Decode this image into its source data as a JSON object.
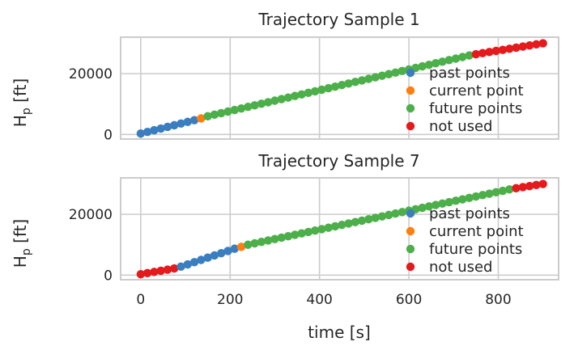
{
  "chart_data": [
    {
      "type": "scatter",
      "title": "Trajectory Sample 1",
      "xlabel": "",
      "ylabel": "H_p [ft]",
      "xlim": [
        -45,
        935
      ],
      "ylim": [
        -1500,
        32000
      ],
      "xticks": [
        0,
        200,
        400,
        600,
        800
      ],
      "yticks": [
        0,
        20000
      ],
      "xticklabels_visible": false,
      "grid": true,
      "legend_position": "lower-right",
      "sample_interval_s": 15,
      "series": [
        {
          "name": "past points",
          "color": "#3a7ebf",
          "x_start": 0,
          "x_end": 120,
          "y_start": 300,
          "y_end": 4700
        },
        {
          "name": "current point",
          "color": "#ff7f0e",
          "x_start": 135,
          "x_end": 135,
          "y_start": 5300,
          "y_end": 5300
        },
        {
          "name": "future points",
          "color": "#4daf4a",
          "x_start": 150,
          "x_end": 735,
          "y_start": 6000,
          "y_end": 26000
        },
        {
          "name": "not used",
          "color": "#e41a1c",
          "x_start": 750,
          "x_end": 900,
          "y_start": 26400,
          "y_end": 30000
        }
      ]
    },
    {
      "type": "scatter",
      "title": "Trajectory Sample 7",
      "xlabel": "time [s]",
      "ylabel": "H_p [ft]",
      "xlim": [
        -45,
        935
      ],
      "ylim": [
        -1500,
        32000
      ],
      "xticks": [
        0,
        200,
        400,
        600,
        800
      ],
      "yticks": [
        0,
        20000
      ],
      "xticklabels_visible": true,
      "grid": true,
      "legend_position": "lower-right",
      "sample_interval_s": 15,
      "series": [
        {
          "name": "not used",
          "color": "#e41a1c",
          "x_start": 0,
          "x_end": 75,
          "y_start": 300,
          "y_end": 2200
        },
        {
          "name": "past points",
          "color": "#3a7ebf",
          "x_start": 90,
          "x_end": 210,
          "y_start": 2800,
          "y_end": 8700
        },
        {
          "name": "current point",
          "color": "#ff7f0e",
          "x_start": 225,
          "x_end": 225,
          "y_start": 9300,
          "y_end": 9300
        },
        {
          "name": "future points",
          "color": "#4daf4a",
          "x_start": 240,
          "x_end": 825,
          "y_start": 10000,
          "y_end": 28200
        },
        {
          "name": "not used",
          "color": "#e41a1c",
          "x_start": 840,
          "x_end": 900,
          "y_start": 28600,
          "y_end": 30000
        }
      ]
    }
  ],
  "legend": [
    {
      "label": "past points",
      "color": "#3a7ebf"
    },
    {
      "label": "current point",
      "color": "#ff7f0e"
    },
    {
      "label": "future points",
      "color": "#4daf4a"
    },
    {
      "label": "not used",
      "color": "#e41a1c"
    }
  ]
}
